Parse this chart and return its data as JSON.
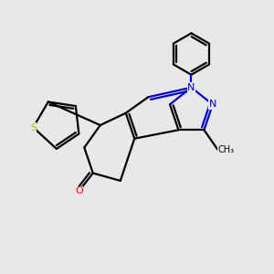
{
  "bg": "#e8e8e8",
  "bc": "#000000",
  "nc": "#0000cc",
  "oc": "#ff0000",
  "sc": "#b8b800",
  "lw": 1.6,
  "fs": 8.0,
  "xlim": [
    1.0,
    9.5
  ],
  "ylim": [
    1.5,
    9.5
  ]
}
